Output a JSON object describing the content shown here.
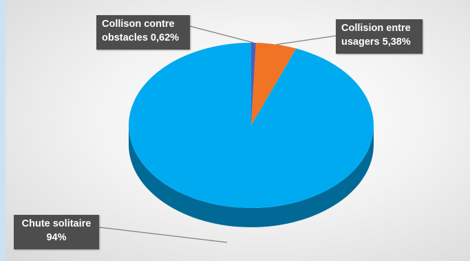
{
  "chart_data": {
    "type": "pie",
    "labels": [
      "Chute solitaire",
      "Collison contre obstacles",
      "Collision entre usagers"
    ],
    "values": [
      94,
      0.62,
      5.38
    ],
    "value_labels": [
      "94%",
      "0,62%",
      "5,38%"
    ],
    "colors": [
      "#00aaf0",
      "#4f5fb8",
      "#f07424"
    ],
    "callouts": [
      {
        "line1": "Collison contre",
        "line2": "obstacles 0,62%"
      },
      {
        "line1": "Collision entre",
        "line2": "usagers  5,38%"
      },
      {
        "line1": "Chute solitaire",
        "line2": "94%"
      }
    ]
  }
}
